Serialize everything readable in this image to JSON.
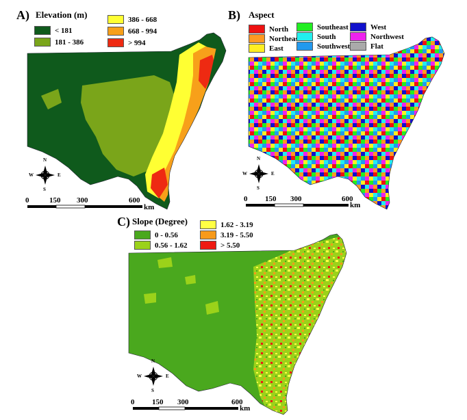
{
  "panels": [
    {
      "label": "A)",
      "legend_title": "Elevation (m)",
      "legend": [
        {
          "text": "< 181",
          "color": "#0f5a1c"
        },
        {
          "text": "181 - 386",
          "color": "#7aa51a"
        },
        {
          "text": "386 - 668",
          "color": "#ffff33"
        },
        {
          "text": "668 - 994",
          "color": "#f7a01a"
        },
        {
          "text": "> 994",
          "color": "#ee2a12"
        }
      ],
      "scale_ticks": [
        "0",
        "150",
        "300",
        "600"
      ],
      "scale_unit": "km"
    },
    {
      "label": "B)",
      "legend_title": "Aspect",
      "legend": [
        {
          "text": "North",
          "color": "#ee1111"
        },
        {
          "text": "Northeast",
          "color": "#ff9922"
        },
        {
          "text": "East",
          "color": "#ffee22"
        },
        {
          "text": "Southeast",
          "color": "#22ee22"
        },
        {
          "text": "South",
          "color": "#22eeee"
        },
        {
          "text": "Southwest",
          "color": "#2299ee"
        },
        {
          "text": "West",
          "color": "#1111cc"
        },
        {
          "text": "Northwest",
          "color": "#ee22ee"
        },
        {
          "text": "Flat",
          "color": "#aaaaaa"
        }
      ],
      "scale_ticks": [
        "0",
        "150",
        "300",
        "600"
      ],
      "scale_unit": "km"
    },
    {
      "label": "C)",
      "legend_title": "Slope (Degree)",
      "legend": [
        {
          "text": "0 - 0.56",
          "color": "#4aa81e"
        },
        {
          "text": "0.56 - 1.62",
          "color": "#9bd21a"
        },
        {
          "text": "1.62 - 3.19",
          "color": "#ffff44"
        },
        {
          "text": "3.19 - 5.50",
          "color": "#f79a1a"
        },
        {
          "text": "> 5.50",
          "color": "#ee1a12"
        }
      ],
      "scale_ticks": [
        "0",
        "150",
        "300",
        "600"
      ],
      "scale_unit": "km"
    }
  ],
  "compass": {
    "n": "N",
    "s": "S",
    "e": "E",
    "w": "W"
  }
}
